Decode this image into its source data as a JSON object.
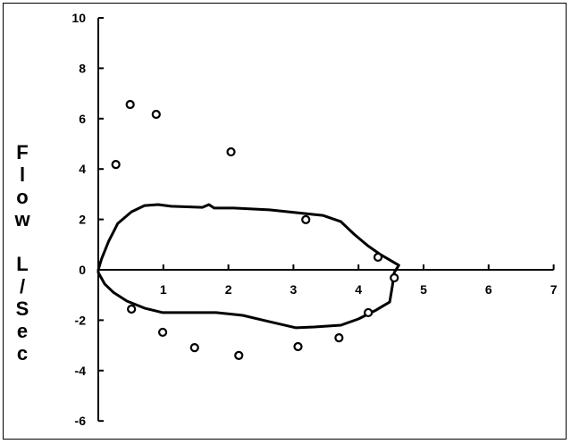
{
  "chart_data": {
    "type": "scatter",
    "title": "",
    "xlabel": "",
    "ylabel": "Flow L/Sec",
    "xlim": [
      0,
      7
    ],
    "ylim": [
      -6,
      10
    ],
    "xticks": [
      1,
      2,
      3,
      4,
      5,
      6,
      7
    ],
    "yticks": [
      10,
      8,
      6,
      4,
      2,
      0,
      -2,
      -4,
      -6
    ],
    "grid": false,
    "legend": "none",
    "colors": {
      "line": "#000000",
      "markers": "#000000"
    },
    "series": [
      {
        "type": "scatter",
        "marker": "open-circle",
        "points": [
          [
            0.27,
            4.18
          ],
          [
            0.49,
            6.56
          ],
          [
            0.89,
            6.17
          ],
          [
            2.04,
            4.68
          ],
          [
            3.19,
            1.99
          ],
          [
            4.3,
            0.5
          ],
          [
            4.55,
            -0.32
          ],
          [
            4.15,
            -1.7
          ],
          [
            3.7,
            -2.7
          ],
          [
            3.07,
            -3.05
          ],
          [
            2.16,
            -3.4
          ],
          [
            1.48,
            -3.09
          ],
          [
            0.99,
            -2.48
          ],
          [
            0.51,
            -1.56
          ]
        ]
      },
      {
        "type": "line",
        "closed": true,
        "points": [
          [
            0,
            0
          ],
          [
            0.05,
            0.43
          ],
          [
            0.16,
            1.13
          ],
          [
            0.3,
            1.84
          ],
          [
            0.51,
            2.3
          ],
          [
            0.71,
            2.55
          ],
          [
            0.92,
            2.59
          ],
          [
            1.12,
            2.52
          ],
          [
            1.6,
            2.48
          ],
          [
            1.7,
            2.59
          ],
          [
            1.78,
            2.45
          ],
          [
            2.08,
            2.45
          ],
          [
            2.63,
            2.38
          ],
          [
            3.04,
            2.27
          ],
          [
            3.45,
            2.16
          ],
          [
            3.73,
            1.91
          ],
          [
            3.93,
            1.42
          ],
          [
            4.14,
            0.96
          ],
          [
            4.34,
            0.6
          ],
          [
            4.62,
            0.18
          ],
          [
            4.55,
            -0.11
          ],
          [
            4.52,
            -0.64
          ],
          [
            4.48,
            -1.28
          ],
          [
            4.27,
            -1.6
          ],
          [
            4.0,
            -1.95
          ],
          [
            3.73,
            -2.2
          ],
          [
            3.32,
            -2.27
          ],
          [
            3.04,
            -2.3
          ],
          [
            2.63,
            -2.06
          ],
          [
            2.22,
            -1.81
          ],
          [
            1.81,
            -1.7
          ],
          [
            1.26,
            -1.7
          ],
          [
            0.99,
            -1.7
          ],
          [
            0.71,
            -1.52
          ],
          [
            0.44,
            -1.24
          ],
          [
            0.23,
            -0.89
          ],
          [
            0.1,
            -0.57
          ],
          [
            0,
            -0.11
          ]
        ]
      }
    ]
  }
}
